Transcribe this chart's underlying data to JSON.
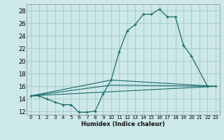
{
  "xlabel": "Humidex (Indice chaleur)",
  "bg_color": "#cce8e8",
  "grid_color": "#aacccc",
  "line_color": "#1a6b6b",
  "xlim": [
    -0.5,
    23.5
  ],
  "ylim": [
    11.5,
    29.0
  ],
  "yticks": [
    12,
    14,
    16,
    18,
    20,
    22,
    24,
    26,
    28
  ],
  "xticks": [
    0,
    1,
    2,
    3,
    4,
    5,
    6,
    7,
    8,
    9,
    10,
    11,
    12,
    13,
    14,
    15,
    16,
    17,
    18,
    19,
    20,
    21,
    22,
    23
  ],
  "series1_x": [
    0,
    1,
    2,
    3,
    4,
    5,
    6,
    7,
    8,
    9,
    10,
    11,
    12,
    13,
    14,
    15,
    16,
    17,
    18,
    19,
    20,
    22,
    23
  ],
  "series1_y": [
    14.5,
    14.5,
    14.0,
    13.5,
    13.1,
    13.1,
    11.9,
    11.9,
    12.1,
    14.8,
    17.0,
    21.5,
    24.8,
    25.8,
    27.4,
    27.4,
    28.2,
    27.0,
    27.0,
    22.5,
    20.8,
    16.0,
    16.0
  ],
  "series2_x": [
    0,
    23
  ],
  "series2_y": [
    14.5,
    16.0
  ],
  "series3_x": [
    0,
    10,
    23
  ],
  "series3_y": [
    14.5,
    16.2,
    16.0
  ],
  "series4_x": [
    0,
    10,
    23
  ],
  "series4_y": [
    14.5,
    17.0,
    16.0
  ]
}
